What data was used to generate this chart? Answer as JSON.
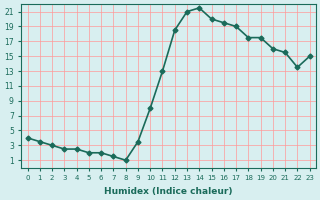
{
  "x": [
    0,
    1,
    2,
    3,
    4,
    5,
    6,
    7,
    8,
    9,
    10,
    11,
    12,
    13,
    14,
    15,
    16,
    17,
    18,
    19,
    20,
    21,
    22,
    23
  ],
  "y": [
    4,
    3.5,
    3,
    2.5,
    2.5,
    2,
    2,
    1.5,
    1,
    3.5,
    8,
    13,
    18.5,
    21,
    21.5,
    20,
    19.5,
    19,
    17.5,
    17.5,
    16,
    15.5,
    13.5,
    15
  ],
  "line_color": "#1a6b5a",
  "bg_color": "#d8eff0",
  "grid_color": "#ff9999",
  "xlabel": "Humidex (Indice chaleur)",
  "xlim": [
    -0.5,
    23.5
  ],
  "ylim": [
    0,
    22
  ],
  "yticks": [
    1,
    3,
    5,
    7,
    9,
    11,
    13,
    15,
    17,
    19,
    21
  ],
  "xticks": [
    0,
    1,
    2,
    3,
    4,
    5,
    6,
    7,
    8,
    9,
    10,
    11,
    12,
    13,
    14,
    15,
    16,
    17,
    18,
    19,
    20,
    21,
    22,
    23
  ],
  "marker": "D",
  "marker_size": 2.5,
  "line_width": 1.2
}
